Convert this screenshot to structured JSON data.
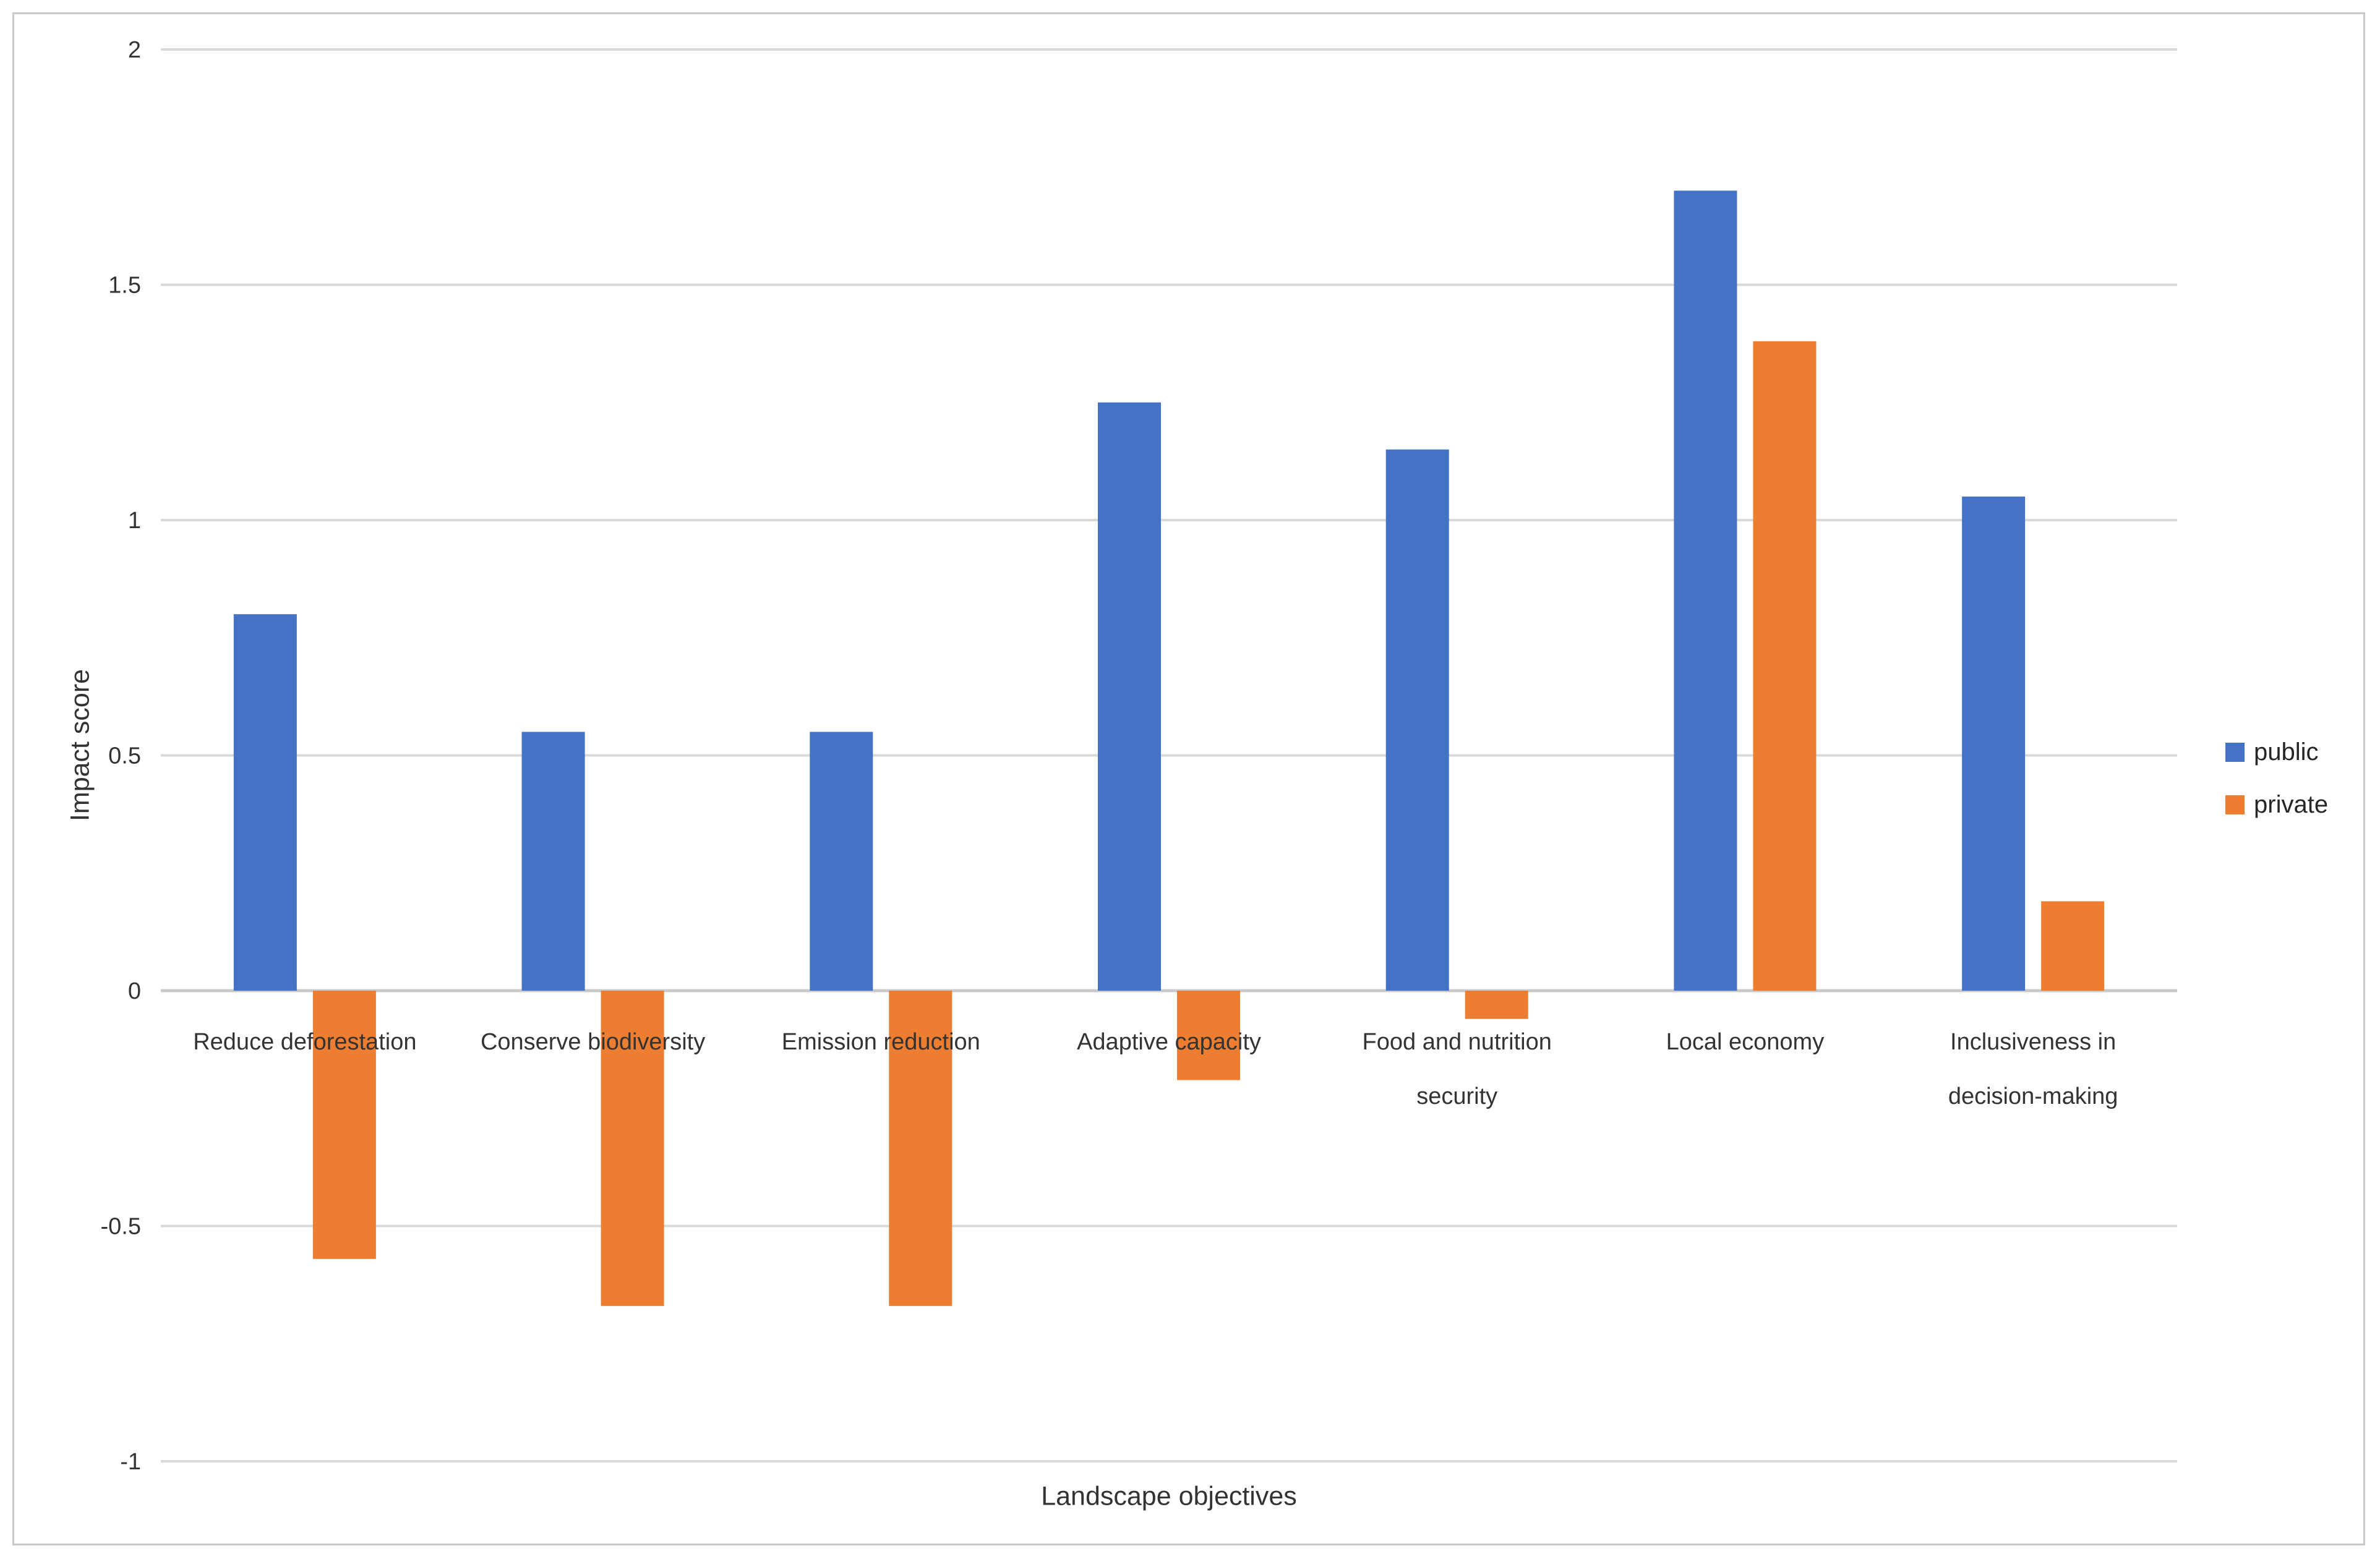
{
  "chart_data": {
    "type": "bar",
    "title": "",
    "xlabel": "Landscape objectives",
    "ylabel": "Impact score",
    "categories": [
      "Reduce deforestation",
      "Conserve biodiversity",
      "Emission reduction",
      "Adaptive capacity",
      "Food and nutrition security",
      "Local economy",
      "Inclusiveness in decision-making"
    ],
    "category_label_lines": [
      [
        "Reduce deforestation"
      ],
      [
        "Conserve biodiversity"
      ],
      [
        "Emission reduction"
      ],
      [
        "Adaptive capacity"
      ],
      [
        "Food and nutrition",
        "security"
      ],
      [
        "Local economy"
      ],
      [
        "Inclusiveness in",
        "decision-making"
      ]
    ],
    "series": [
      {
        "name": "public",
        "color": "#4472C4",
        "values": [
          0.8,
          0.55,
          0.55,
          1.25,
          1.15,
          1.7,
          1.05
        ]
      },
      {
        "name": "private",
        "color": "#ED7D31",
        "values": [
          -0.57,
          -0.67,
          -0.67,
          -0.19,
          -0.06,
          1.38,
          0.19
        ]
      }
    ],
    "ylim": [
      -1,
      2
    ],
    "ytick_step": 0.5,
    "yticks": [
      2,
      1.5,
      1,
      0.5,
      0,
      -0.5,
      -1
    ],
    "ytick_labels": [
      "2",
      "1.5",
      "1",
      "0.5",
      "0",
      "-0.5",
      "-1"
    ],
    "grid": true,
    "gridline_color": "#D9D9D9",
    "zero_line_color": "#C9C9C9",
    "axis_text_color": "#333333",
    "legend_position": "right"
  }
}
